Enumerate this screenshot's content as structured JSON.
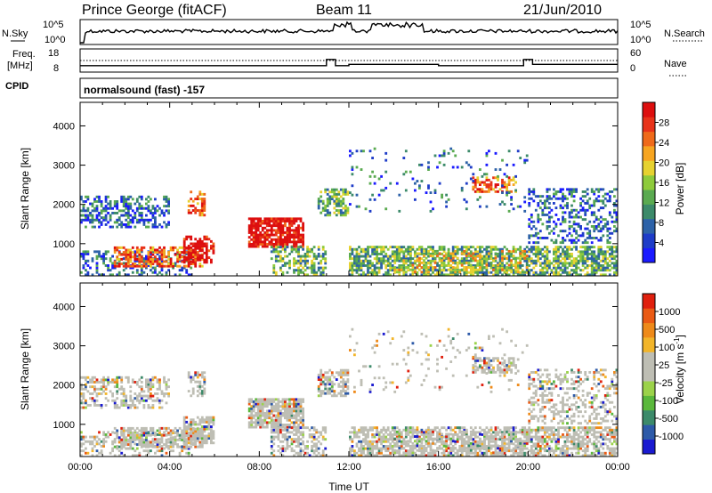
{
  "header": {
    "station": "Prince George (fitACF)",
    "beam": "Beam 11",
    "date": "21/Jun/2010"
  },
  "panels": {
    "nsky": {
      "left_label": "N.Sky",
      "right_label": "N.Search",
      "left_ticks": [
        "10^5",
        "10^0"
      ],
      "right_ticks": [
        "10^5",
        "10^0"
      ]
    },
    "freq": {
      "left_label_1": "Freq.",
      "left_label_2": "[MHz]",
      "left_ticks": [
        "18",
        "8"
      ],
      "right_ticks": [
        "60",
        "0"
      ],
      "right_label": "Nave"
    },
    "cpid": {
      "label": "CPID",
      "program": "normalsound (fast) -157"
    }
  },
  "chart_data": [
    {
      "type": "heatmap",
      "name": "power",
      "ylabel": "Slant Range [km]",
      "y_ticks": [
        1000,
        2000,
        3000,
        4000
      ],
      "ylim": [
        180,
        4600
      ],
      "xlim": [
        0,
        24
      ],
      "colorbar": {
        "label": "Power [dB]",
        "ticks": [
          "4",
          "8",
          "12",
          "16",
          "20",
          "24",
          "28"
        ],
        "colors": [
          "#1a1aff",
          "#1e3cc8",
          "#2d62a8",
          "#3c8a6a",
          "#5aaa50",
          "#8ecb3c",
          "#e6d230",
          "#f7a520",
          "#ef6a1a",
          "#e8331a",
          "#dd0f0f"
        ]
      }
    },
    {
      "type": "heatmap",
      "name": "velocity",
      "ylabel": "Slant Range [km]",
      "xlabel": "Time UT",
      "y_ticks": [
        1000,
        2000,
        3000,
        4000
      ],
      "ylim": [
        180,
        4600
      ],
      "xlim": [
        0,
        24
      ],
      "x_ticks": [
        "00:00",
        "04:00",
        "08:00",
        "12:00",
        "16:00",
        "20:00",
        "00:00"
      ],
      "colorbar": {
        "label": "Velocity [m s^-1]",
        "ticks": [
          "1000",
          "500",
          "100",
          "25",
          "-25",
          "-100",
          "-500",
          "-1000"
        ],
        "colors": [
          "#1a1ad0",
          "#2d5aa8",
          "#3c8a6a",
          "#5ab83c",
          "#9bd24a",
          "#bebeb4",
          "#bebeb4",
          "#f2b52a",
          "#ee8a1a",
          "#ea5a14",
          "#e0200e"
        ]
      }
    }
  ]
}
